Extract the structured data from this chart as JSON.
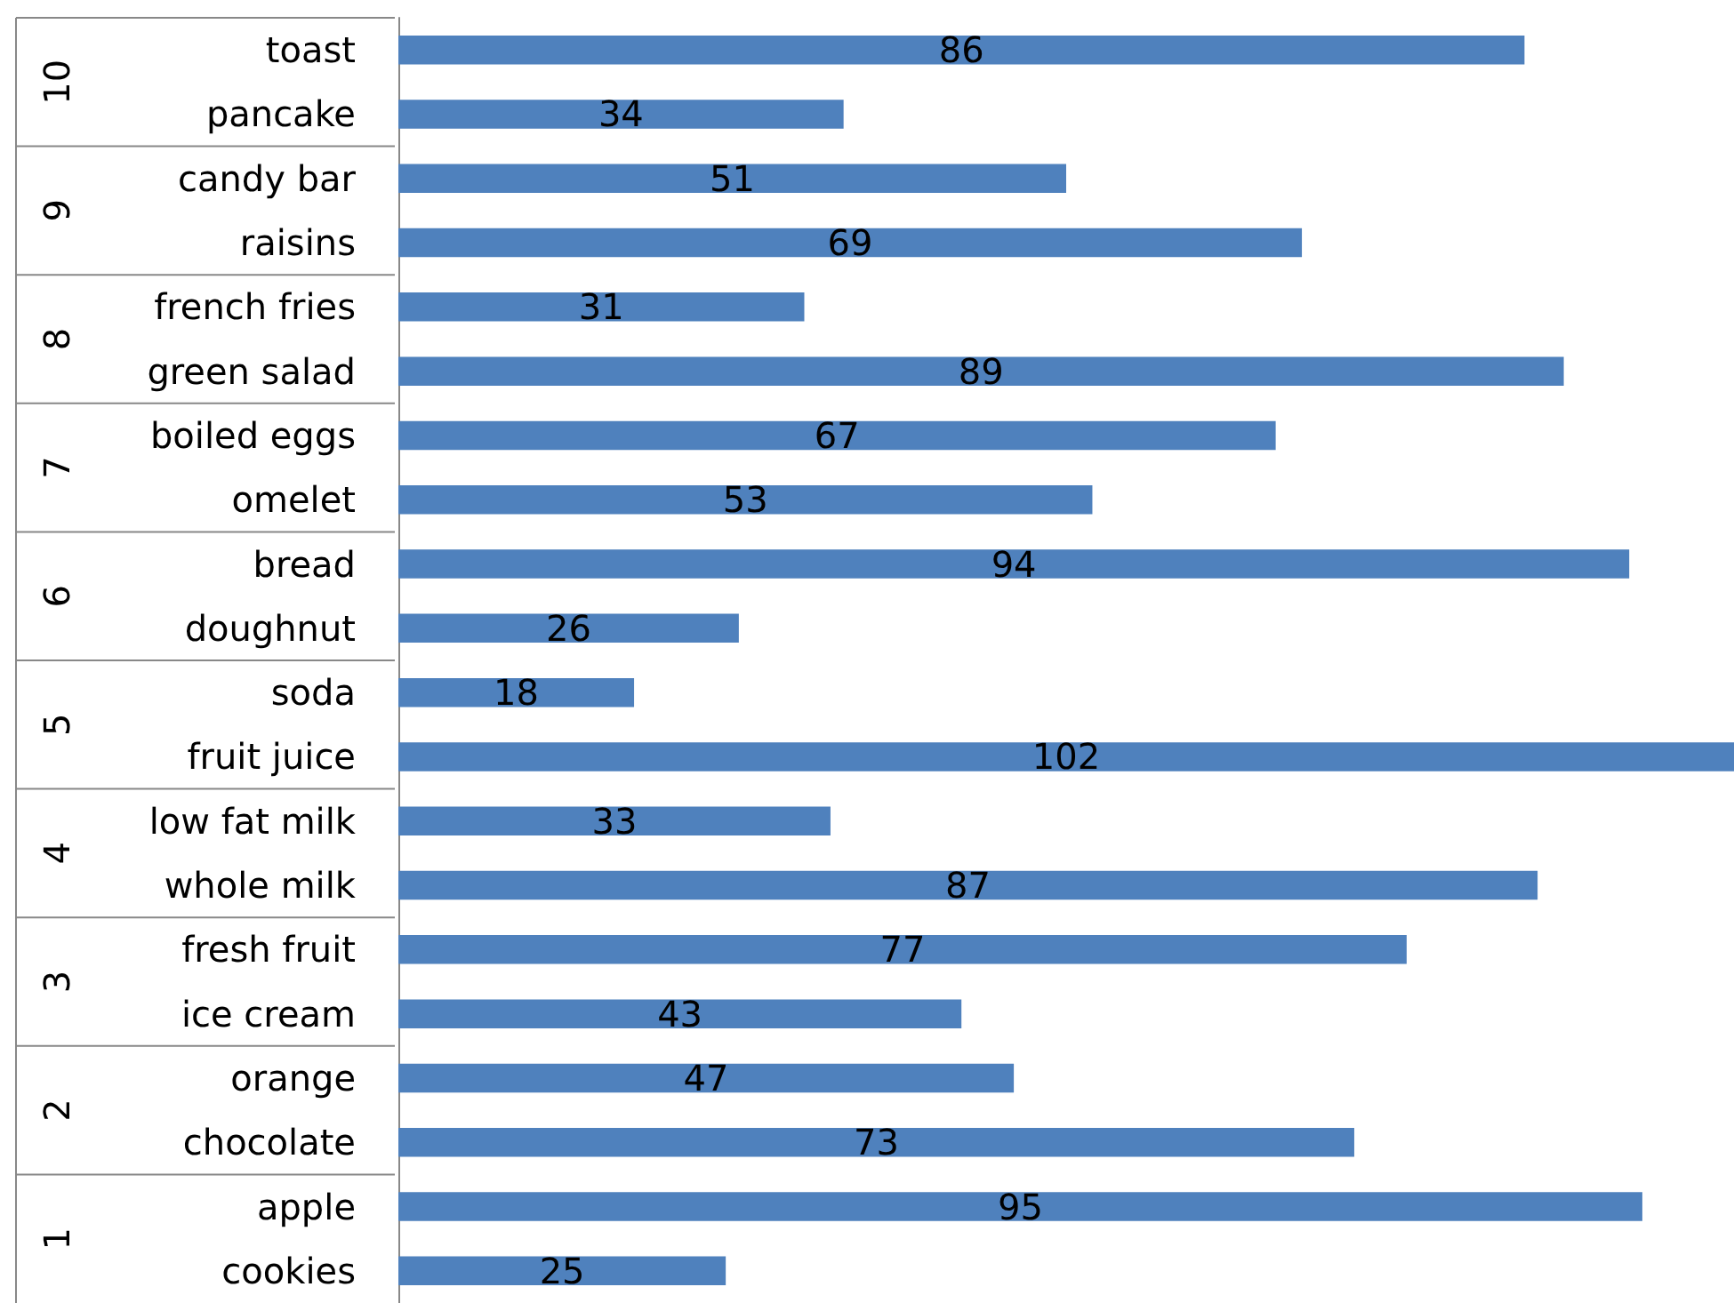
{
  "chart_data": {
    "type": "bar",
    "orientation": "horizontal",
    "categories": [
      "toast",
      "pancake",
      "candy bar",
      "raisins",
      "french fries",
      "green salad",
      "boiled eggs",
      "omelet",
      "bread",
      "doughnut",
      "soda",
      "fruit juice",
      "low fat milk",
      "whole milk",
      "fresh fruit",
      "ice cream",
      "orange",
      "chocolate",
      "apple",
      "cookies"
    ],
    "values": [
      86,
      34,
      51,
      69,
      31,
      89,
      67,
      53,
      94,
      26,
      18,
      102,
      33,
      87,
      77,
      43,
      47,
      73,
      95,
      25
    ],
    "color": "#4f81bd",
    "data_labels": true,
    "annotations": [
      "10",
      "9",
      "8",
      "7",
      "6",
      "5",
      "4",
      "3",
      "2",
      "1"
    ]
  }
}
